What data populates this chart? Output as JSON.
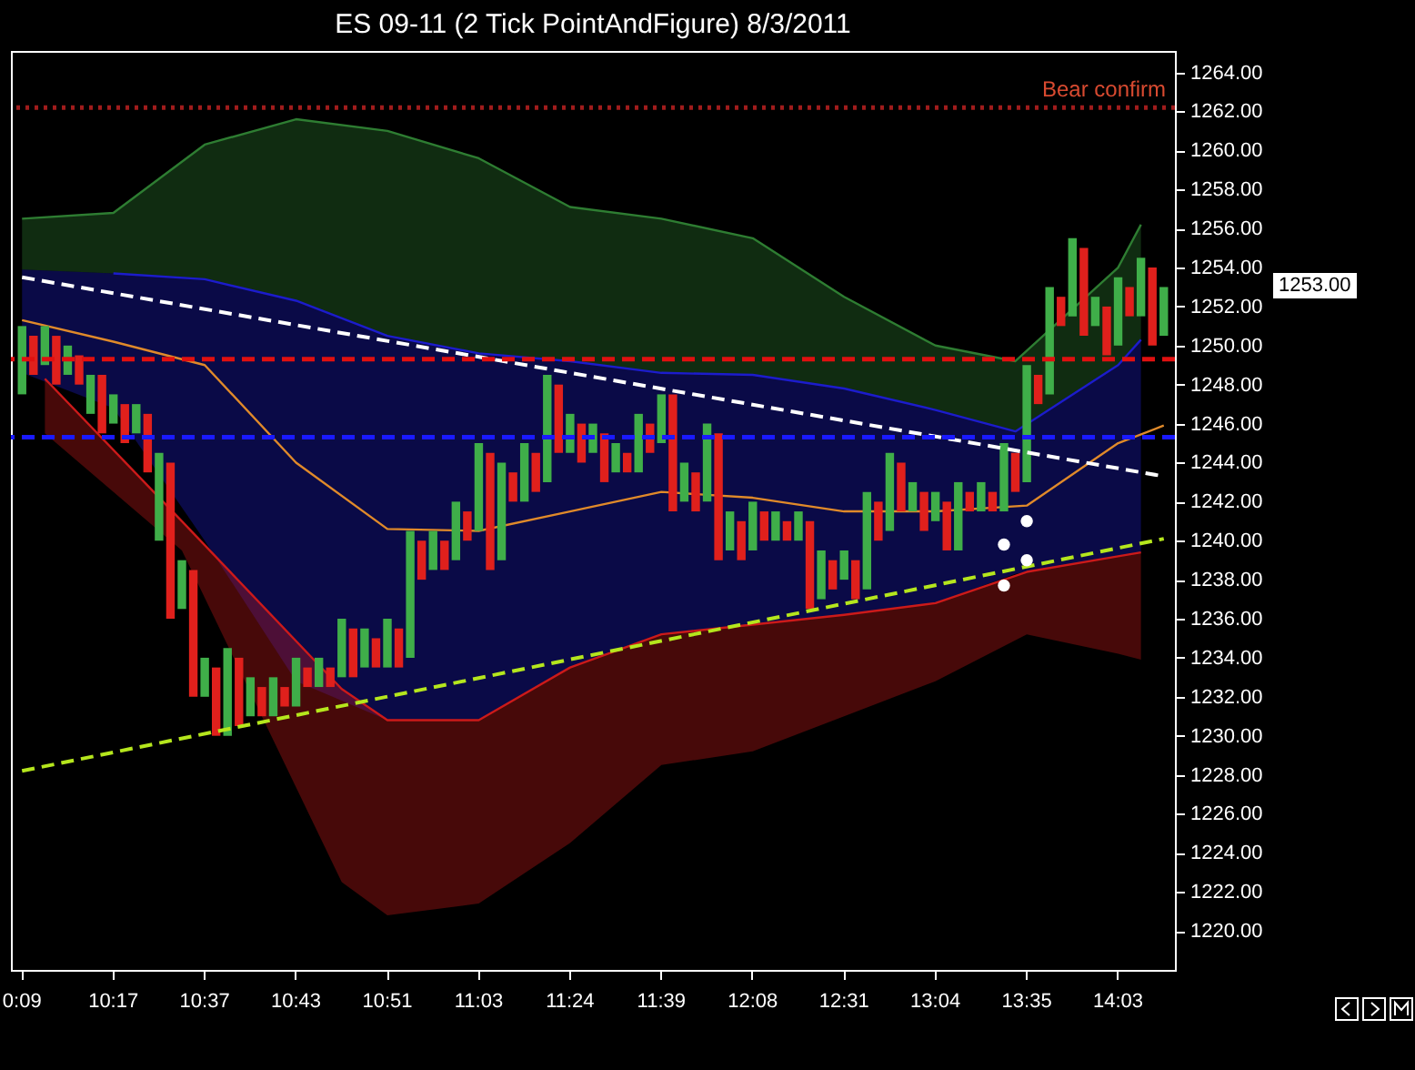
{
  "chart_data": {
    "type": "bar",
    "title": "ES 09-11 (2 Tick PointAndFigure)  8/3/2011",
    "categories": [
      "0:09",
      null,
      null,
      null,
      null,
      null,
      null,
      null,
      "10:17",
      null,
      null,
      null,
      null,
      null,
      null,
      null,
      "10:37",
      null,
      null,
      null,
      null,
      null,
      null,
      null,
      "10:43",
      null,
      null,
      null,
      null,
      null,
      null,
      null,
      "10:51",
      null,
      null,
      null,
      null,
      null,
      null,
      null,
      "11:03",
      null,
      null,
      null,
      null,
      null,
      null,
      null,
      "11:24",
      null,
      null,
      null,
      null,
      null,
      null,
      null,
      "11:39",
      null,
      null,
      null,
      null,
      null,
      null,
      null,
      "12:08",
      null,
      null,
      null,
      null,
      null,
      null,
      null,
      "12:31",
      null,
      null,
      null,
      null,
      null,
      null,
      null,
      "13:04",
      null,
      null,
      null,
      null,
      null,
      null,
      null,
      "13:35",
      null,
      null,
      null,
      null,
      null,
      null,
      null,
      "14:03",
      null,
      null,
      null,
      null
    ],
    "series": [
      {
        "type": "line",
        "color": "#2e7d32",
        "upper": [
          1256.5,
          null,
          null,
          null,
          null,
          null,
          null,
          null,
          1256.8,
          null,
          null,
          null,
          null,
          null,
          null,
          null,
          1260.3,
          null,
          null,
          null,
          null,
          null,
          null,
          null,
          1261.6,
          null,
          null,
          null,
          null,
          null,
          null,
          null,
          1261,
          null,
          null,
          null,
          null,
          null,
          null,
          null,
          1259.6,
          null,
          null,
          null,
          null,
          null,
          null,
          null,
          1257.1,
          null,
          null,
          null,
          null,
          null,
          null,
          null,
          1256.5,
          null,
          null,
          null,
          null,
          null,
          null,
          null,
          1255.5,
          null,
          null,
          null,
          null,
          null,
          null,
          null,
          1252.5,
          null,
          null,
          null,
          null,
          null,
          null,
          null,
          1250,
          null,
          null,
          null,
          null,
          null,
          null,
          1249.2,
          null,
          null,
          null,
          null,
          null,
          null,
          null,
          null,
          1254,
          null,
          1256.2,
          null,
          null
        ],
        "values": [
          1256.5,
          null,
          null,
          null,
          null,
          null,
          null,
          null,
          1256.8,
          null,
          null,
          null,
          null,
          null,
          null,
          null,
          1260.3,
          null,
          null,
          null,
          null,
          null,
          null,
          null,
          1261.6,
          null,
          null,
          null,
          null,
          null,
          null,
          null,
          1261,
          null,
          null,
          null,
          null,
          null,
          null,
          null,
          1259.6,
          null,
          null,
          null,
          null,
          null,
          null,
          null,
          1257.1,
          null,
          null,
          null,
          null,
          null,
          null,
          null,
          1256.5,
          null,
          null,
          null,
          null,
          null,
          null,
          null,
          1255.5,
          null,
          null,
          null,
          null,
          null,
          null,
          null,
          1252.5,
          null,
          null,
          null,
          null,
          null,
          null,
          null,
          1250,
          null,
          null,
          null,
          null,
          null,
          null,
          1249.2,
          null,
          null,
          null,
          null,
          null,
          null,
          null,
          null,
          1254,
          null,
          1256.2,
          null,
          null
        ],
        "lower": [
          1253.9,
          null,
          null,
          null,
          null,
          null,
          null,
          null,
          1253.7,
          null,
          null,
          null,
          null,
          null,
          null,
          null,
          1253.4,
          null,
          null,
          null,
          null,
          null,
          null,
          null,
          1252.3,
          null,
          null,
          null,
          null,
          null,
          null,
          null,
          1250.5,
          null,
          null,
          null,
          null,
          null,
          null,
          null,
          1249.6,
          null,
          null,
          null,
          null,
          null,
          null,
          null,
          1249.2,
          null,
          null,
          null,
          null,
          null,
          null,
          null,
          1248.6,
          null,
          null,
          null,
          null,
          null,
          null,
          null,
          1248.5,
          null,
          null,
          null,
          null,
          null,
          null,
          null,
          1247.8,
          null,
          null,
          null,
          null,
          null,
          null,
          null,
          1246.7,
          null,
          null,
          null,
          null,
          null,
          null,
          1245.6,
          null,
          null,
          null,
          null,
          null,
          null,
          null,
          null,
          1249,
          null,
          1250.3,
          null,
          null
        ]
      },
      {
        "type": "line",
        "color": "#1c1ccc",
        "upper": [
          1253.9,
          null,
          null,
          null,
          null,
          null,
          null,
          null,
          1253.7,
          null,
          null,
          null,
          null,
          null,
          null,
          null,
          1253.4,
          null,
          null,
          null,
          null,
          null,
          null,
          null,
          1252.3,
          null,
          null,
          null,
          null,
          null,
          null,
          null,
          1250.5,
          null,
          null,
          null,
          null,
          null,
          null,
          null,
          1249.6,
          null,
          null,
          null,
          null,
          null,
          null,
          null,
          1249.2,
          null,
          null,
          null,
          null,
          null,
          null,
          null,
          1248.6,
          null,
          null,
          null,
          null,
          null,
          null,
          null,
          1248.5,
          null,
          null,
          null,
          null,
          null,
          null,
          null,
          1247.8,
          null,
          null,
          null,
          null,
          null,
          null,
          null,
          1246.7,
          null,
          null,
          null,
          null,
          null,
          null,
          1245.6,
          null,
          null,
          null,
          null,
          null,
          null,
          null,
          null,
          1249,
          null,
          1250.3,
          null,
          null
        ],
        "values": [
          null,
          null,
          null,
          null,
          null,
          null,
          null,
          null,
          1253.7,
          null,
          null,
          null,
          null,
          null,
          null,
          null,
          1253.4,
          null,
          null,
          null,
          null,
          null,
          null,
          null,
          1252.3,
          null,
          null,
          null,
          null,
          null,
          null,
          null,
          1250.5,
          null,
          null,
          null,
          null,
          null,
          null,
          null,
          1249.6,
          null,
          null,
          null,
          null,
          null,
          null,
          null,
          1249.2,
          null,
          null,
          null,
          null,
          null,
          null,
          null,
          1248.6,
          null,
          null,
          null,
          null,
          null,
          null,
          null,
          1248.5,
          null,
          null,
          null,
          null,
          null,
          null,
          null,
          1247.8,
          null,
          null,
          null,
          null,
          null,
          null,
          null,
          1246.7,
          null,
          null,
          null,
          null,
          null,
          null,
          1245.6,
          null,
          null,
          null,
          null,
          null,
          null,
          null,
          null,
          1249,
          null,
          1250.3,
          null,
          null
        ],
        "lower": [
          1248.6,
          null,
          null,
          null,
          null,
          null,
          null,
          null,
          1246.8,
          null,
          null,
          null,
          null,
          null,
          null,
          null,
          1240,
          null,
          null,
          null,
          null,
          null,
          null,
          null,
          1232.8,
          null,
          null,
          null,
          null,
          null,
          null,
          null,
          1230.8,
          null,
          null,
          null,
          null,
          null,
          null,
          null,
          1230.8,
          null,
          null,
          null,
          null,
          null,
          null,
          null,
          1233.5,
          null,
          null,
          null,
          null,
          null,
          null,
          null,
          1235.2,
          null,
          null,
          null,
          null,
          null,
          null,
          null,
          1235.7,
          null,
          null,
          null,
          null,
          null,
          null,
          null,
          1236.2,
          null,
          null,
          null,
          null,
          null,
          null,
          null,
          1236.8,
          null,
          null,
          null,
          null,
          null,
          null,
          1238.3,
          null,
          null,
          null,
          null,
          null,
          null,
          null,
          null,
          1239.2,
          null,
          1239.4,
          null,
          null
        ]
      },
      {
        "type": "line",
        "color": "#cc1a1a",
        "upper": [
          null,
          null,
          1248.3,
          null,
          null,
          null,
          null,
          null,
          null,
          null,
          null,
          null,
          null,
          null,
          1241,
          null,
          null,
          null,
          null,
          null,
          null,
          null,
          null,
          null,
          null,
          null,
          null,
          null,
          1232.4,
          null,
          null,
          null,
          1230.8,
          null,
          null,
          null,
          null,
          null,
          null,
          null,
          1230.8,
          null,
          null,
          null,
          null,
          null,
          null,
          null,
          1233.5,
          null,
          null,
          null,
          null,
          null,
          null,
          null,
          1235.2,
          null,
          null,
          null,
          null,
          null,
          null,
          null,
          1235.7,
          null,
          null,
          null,
          null,
          null,
          null,
          null,
          1236.2,
          null,
          null,
          null,
          null,
          null,
          null,
          null,
          1236.8,
          null,
          null,
          null,
          null,
          null,
          null,
          null,
          1238.4,
          null,
          null,
          null,
          null,
          null,
          null,
          null,
          1239.2,
          null,
          1239.4,
          null,
          null
        ],
        "values": [
          null,
          null,
          1248.3,
          null,
          null,
          null,
          null,
          null,
          null,
          null,
          null,
          null,
          null,
          null,
          1241,
          null,
          null,
          null,
          null,
          null,
          null,
          null,
          null,
          null,
          null,
          null,
          null,
          null,
          1232.4,
          null,
          null,
          null,
          1230.8,
          null,
          null,
          null,
          null,
          null,
          null,
          null,
          1230.8,
          null,
          null,
          null,
          null,
          null,
          null,
          null,
          1233.5,
          null,
          null,
          null,
          null,
          null,
          null,
          null,
          1235.2,
          null,
          null,
          null,
          null,
          null,
          null,
          null,
          1235.7,
          null,
          null,
          null,
          null,
          null,
          null,
          null,
          1236.2,
          null,
          null,
          null,
          null,
          null,
          null,
          null,
          1236.8,
          null,
          null,
          null,
          null,
          null,
          null,
          null,
          1238.4,
          null,
          null,
          null,
          null,
          null,
          null,
          null,
          1239.2,
          null,
          1239.4,
          null,
          null
        ],
        "lower": [
          null,
          null,
          1245.5,
          null,
          null,
          null,
          null,
          null,
          null,
          null,
          null,
          null,
          null,
          null,
          1239.5,
          null,
          null,
          null,
          null,
          null,
          null,
          null,
          null,
          null,
          null,
          null,
          null,
          null,
          1222.5,
          null,
          null,
          null,
          1220.8,
          null,
          null,
          null,
          null,
          null,
          null,
          null,
          1221.4,
          null,
          null,
          null,
          null,
          null,
          null,
          null,
          1224.5,
          null,
          null,
          null,
          null,
          null,
          null,
          null,
          1228.5,
          null,
          null,
          null,
          null,
          null,
          null,
          null,
          1229.2,
          null,
          null,
          null,
          null,
          null,
          null,
          null,
          1231,
          null,
          null,
          null,
          null,
          null,
          null,
          null,
          1232.8,
          null,
          null,
          null,
          null,
          null,
          null,
          null,
          1235.2,
          null,
          null,
          null,
          null,
          null,
          null,
          null,
          1234.2,
          null,
          1233.9,
          null,
          null
        ]
      },
      {
        "type": "line",
        "color": "#e08a2a",
        "values": [
          1251.3,
          null,
          null,
          null,
          null,
          null,
          null,
          null,
          1250.2,
          null,
          null,
          null,
          null,
          null,
          null,
          null,
          1249,
          null,
          null,
          null,
          null,
          null,
          null,
          null,
          1244,
          null,
          null,
          null,
          null,
          null,
          null,
          null,
          1240.6,
          null,
          null,
          null,
          null,
          null,
          null,
          null,
          1240.5,
          null,
          null,
          null,
          null,
          null,
          null,
          null,
          1241.5,
          null,
          null,
          null,
          null,
          null,
          null,
          null,
          1242.5,
          null,
          null,
          null,
          null,
          null,
          null,
          null,
          1242.2,
          null,
          null,
          null,
          null,
          null,
          null,
          null,
          1241.5,
          null,
          null,
          null,
          null,
          null,
          null,
          null,
          1241.5,
          null,
          null,
          null,
          null,
          null,
          null,
          null,
          1241.8,
          null,
          null,
          null,
          null,
          null,
          null,
          null,
          1245,
          null,
          null,
          null,
          1245.9
        ]
      },
      {
        "type": "bar",
        "values": [
          3.5,
          2,
          2,
          2.5,
          1.5,
          1.5,
          2,
          3,
          1.5,
          2,
          1.5,
          3,
          4.5,
          8,
          2.5,
          6.5,
          2,
          3.5,
          4.5,
          3.5,
          2,
          1.5,
          2,
          1,
          2.5,
          1,
          1.5,
          1,
          3,
          2.5,
          2,
          1.5,
          2.5,
          2,
          6.5,
          2,
          2,
          1.5,
          3,
          1.5,
          4.5,
          6,
          5,
          1.5,
          3,
          2,
          5.5,
          3.5,
          2,
          2,
          1.5,
          2.5,
          1.5,
          1,
          3,
          1.5,
          2.5,
          6,
          2,
          2,
          4,
          6.5,
          2,
          2,
          2.5,
          1.5,
          1.5,
          1,
          1.5,
          4.5,
          2.5,
          1.5,
          1.5,
          2,
          5,
          2,
          4,
          2.5,
          1.5,
          2,
          1.5,
          2.5,
          3.5,
          1,
          1.5,
          1,
          3.5,
          2,
          6,
          1.5,
          5.5,
          1.5,
          4,
          4.5,
          1.5,
          2.5,
          3.5,
          1.5,
          3,
          4,
          2.5
        ],
        "base": [
          1247.5,
          1248.5,
          1249,
          1248,
          1248.5,
          1248,
          1246.5,
          1245.5,
          1246,
          1245,
          1245.5,
          1243.5,
          1240,
          1236,
          1236.5,
          1232,
          1232,
          1230,
          1230,
          1230.5,
          1231,
          1231,
          1231,
          1231.5,
          1231.5,
          1232.5,
          1232.5,
          1232.5,
          1233,
          1233,
          1233.5,
          1233.5,
          1233.5,
          1233.5,
          1234,
          1238,
          1238.5,
          1238.5,
          1239,
          1240,
          1240.5,
          1238.5,
          1239,
          1242,
          1242,
          1242.5,
          1243,
          1244.5,
          1244.5,
          1244,
          1244.5,
          1243,
          1243.5,
          1243.5,
          1243.5,
          1244.5,
          1245,
          1241.5,
          1242,
          1241.5,
          1242,
          1239,
          1239.5,
          1239,
          1239.5,
          1240,
          1240,
          1240,
          1240,
          1236.5,
          1237,
          1237.5,
          1238,
          1237,
          1237.5,
          1240,
          1240.5,
          1241.5,
          1241.5,
          1240.5,
          1241,
          1239.5,
          1239.5,
          1241.5,
          1241.5,
          1241.5,
          1241.5,
          1242.5,
          1243,
          1247,
          1247.5,
          1251,
          1251.5,
          1250.5,
          1251,
          1249.5,
          1250,
          1251.5,
          1251.5,
          1250,
          1250.5
        ],
        "colors": [
          "#3fae49",
          "#e0201c",
          "#3fae49",
          "#e0201c",
          "#3fae49",
          "#e0201c",
          "#3fae49",
          "#e0201c",
          "#3fae49",
          "#e0201c",
          "#3fae49",
          "#e0201c",
          "#3fae49",
          "#e0201c",
          "#3fae49",
          "#e0201c",
          "#3fae49",
          "#e0201c",
          "#3fae49",
          "#e0201c",
          "#3fae49",
          "#e0201c",
          "#3fae49",
          "#e0201c",
          "#3fae49",
          "#e0201c",
          "#3fae49",
          "#e0201c",
          "#3fae49",
          "#e0201c",
          "#3fae49",
          "#e0201c",
          "#3fae49",
          "#e0201c",
          "#3fae49",
          "#e0201c",
          "#3fae49",
          "#e0201c",
          "#3fae49",
          "#e0201c",
          "#3fae49",
          "#e0201c",
          "#3fae49",
          "#e0201c",
          "#3fae49",
          "#e0201c",
          "#3fae49",
          "#e0201c",
          "#3fae49",
          "#e0201c",
          "#3fae49",
          "#e0201c",
          "#3fae49",
          "#e0201c",
          "#3fae49",
          "#e0201c",
          "#3fae49",
          "#e0201c",
          "#3fae49",
          "#e0201c",
          "#3fae49",
          "#e0201c",
          "#3fae49",
          "#e0201c",
          "#3fae49",
          "#e0201c",
          "#3fae49",
          "#e0201c",
          "#3fae49",
          "#e0201c",
          "#3fae49",
          "#e0201c",
          "#3fae49",
          "#e0201c",
          "#3fae49",
          "#e0201c",
          "#3fae49",
          "#e0201c",
          "#3fae49",
          "#e0201c",
          "#3fae49",
          "#e0201c",
          "#3fae49",
          "#e0201c",
          "#3fae49",
          "#e0201c",
          "#3fae49",
          "#e0201c",
          "#3fae49",
          "#e0201c",
          "#3fae49",
          "#e0201c",
          "#3fae49",
          "#e0201c",
          "#3fae49",
          "#e0201c",
          "#3fae49",
          "#e0201c",
          "#3fae49",
          "#e0201c",
          "#3fae49"
        ]
      },
      {
        "type": "line",
        "color": "#ffffff",
        "line_style": "dashed",
        "values": [
          1253.5,
          null,
          null,
          null,
          null,
          null,
          null,
          null,
          null,
          null,
          null,
          null,
          null,
          null,
          null,
          null,
          null,
          null,
          null,
          null,
          null,
          null,
          null,
          null,
          null,
          null,
          null,
          null,
          null,
          null,
          null,
          null,
          null,
          null,
          null,
          null,
          null,
          null,
          null,
          null,
          null,
          null,
          null,
          null,
          null,
          null,
          null,
          null,
          null,
          null,
          null,
          null,
          null,
          null,
          null,
          null,
          null,
          null,
          null,
          null,
          null,
          null,
          null,
          null,
          null,
          null,
          null,
          null,
          null,
          null,
          null,
          null,
          null,
          null,
          null,
          null,
          null,
          null,
          null,
          null,
          null,
          null,
          null,
          null,
          null,
          null,
          null,
          null,
          null,
          null,
          null,
          null,
          null,
          null,
          null,
          null,
          null,
          null,
          null,
          null,
          1243.3
        ]
      },
      {
        "type": "line",
        "color": "#b5e61d",
        "line_style": "dashed",
        "values": [
          1228.2,
          null,
          null,
          null,
          null,
          null,
          null,
          null,
          null,
          null,
          null,
          null,
          null,
          null,
          null,
          null,
          null,
          null,
          null,
          null,
          null,
          null,
          null,
          null,
          null,
          null,
          null,
          null,
          null,
          null,
          null,
          null,
          null,
          null,
          null,
          null,
          null,
          null,
          null,
          null,
          null,
          null,
          null,
          null,
          null,
          null,
          null,
          null,
          null,
          null,
          null,
          null,
          null,
          null,
          null,
          null,
          null,
          null,
          null,
          null,
          null,
          null,
          null,
          null,
          null,
          null,
          null,
          null,
          null,
          null,
          null,
          null,
          null,
          null,
          null,
          null,
          null,
          null,
          null,
          null,
          null,
          null,
          null,
          null,
          null,
          null,
          null,
          null,
          null,
          null,
          null,
          null,
          null,
          null,
          null,
          null,
          null,
          null,
          null,
          null,
          1240.1
        ]
      },
      {
        "type": "scatter",
        "color": "#ffffff",
        "marker": "circle",
        "values": [
          null,
          null,
          null,
          null,
          null,
          null,
          null,
          null,
          null,
          null,
          null,
          null,
          null,
          null,
          null,
          null,
          null,
          null,
          null,
          null,
          null,
          null,
          null,
          null,
          null,
          null,
          null,
          null,
          null,
          null,
          null,
          null,
          null,
          null,
          null,
          null,
          null,
          null,
          null,
          null,
          null,
          null,
          null,
          null,
          null,
          null,
          null,
          null,
          null,
          null,
          null,
          null,
          null,
          null,
          null,
          null,
          null,
          null,
          null,
          null,
          null,
          null,
          null,
          null,
          null,
          null,
          null,
          null,
          null,
          null,
          null,
          null,
          null,
          null,
          null,
          null,
          null,
          null,
          null,
          null,
          null,
          null,
          null,
          null,
          null,
          null,
          1239.8,
          null,
          1241,
          null,
          null,
          null,
          null,
          null,
          null,
          null,
          null,
          null,
          null,
          null,
          null
        ]
      },
      {
        "type": "scatter",
        "color": "#ffffff",
        "marker": "circle",
        "values": [
          null,
          null,
          null,
          null,
          null,
          null,
          null,
          null,
          null,
          null,
          null,
          null,
          null,
          null,
          null,
          null,
          null,
          null,
          null,
          null,
          null,
          null,
          null,
          null,
          null,
          null,
          null,
          null,
          null,
          null,
          null,
          null,
          null,
          null,
          null,
          null,
          null,
          null,
          null,
          null,
          null,
          null,
          null,
          null,
          null,
          null,
          null,
          null,
          null,
          null,
          null,
          null,
          null,
          null,
          null,
          null,
          null,
          null,
          null,
          null,
          null,
          null,
          null,
          null,
          null,
          null,
          null,
          null,
          null,
          null,
          null,
          null,
          null,
          null,
          null,
          null,
          null,
          null,
          null,
          null,
          null,
          null,
          null,
          null,
          null,
          null,
          1237.7,
          null,
          1239,
          null,
          null,
          null,
          null,
          null,
          null,
          null,
          null,
          null,
          null,
          null,
          null
        ]
      }
    ],
    "ylim": [
      1218,
      1265.1
    ],
    "yticks": [
      {
        "value": 1220,
        "label": "1220.00"
      },
      {
        "value": 1222,
        "label": "1222.00"
      },
      {
        "value": 1224,
        "label": "1224.00"
      },
      {
        "value": 1226,
        "label": "1226.00"
      },
      {
        "value": 1228,
        "label": "1228.00"
      },
      {
        "value": 1230,
        "label": "1230.00"
      },
      {
        "value": 1232,
        "label": "1232.00"
      },
      {
        "value": 1234,
        "label": "1234.00"
      },
      {
        "value": 1236,
        "label": "1236.00"
      },
      {
        "value": 1238,
        "label": "1238.00"
      },
      {
        "value": 1240,
        "label": "1240.00"
      },
      {
        "value": 1242,
        "label": "1242.00"
      },
      {
        "value": 1244,
        "label": "1244.00"
      },
      {
        "value": 1246,
        "label": "1246.00"
      },
      {
        "value": 1248,
        "label": "1248.00"
      },
      {
        "value": 1250,
        "label": "1250.00"
      },
      {
        "value": 1252,
        "label": "1252.00"
      },
      {
        "value": 1254,
        "label": "1254.00"
      },
      {
        "value": 1256,
        "label": "1256.00"
      },
      {
        "value": 1258,
        "label": "1258.00"
      },
      {
        "value": 1260,
        "label": "1260.00"
      },
      {
        "value": 1262,
        "label": "1262.00"
      },
      {
        "value": 1264,
        "label": "1264.00"
      }
    ],
    "ref_lines": [
      {
        "axis": "y",
        "value": 1262.2,
        "label": "Bear confirm",
        "color": "#a01c1c",
        "line_style": "dotted"
      },
      {
        "axis": "y",
        "value": 1249.3,
        "color": "#e01010",
        "line_style": "dashed"
      },
      {
        "axis": "y",
        "value": 1245.3,
        "color": "#1a1aff",
        "line_style": "dashed"
      }
    ],
    "annotations": [
      "1253.00"
    ]
  }
}
